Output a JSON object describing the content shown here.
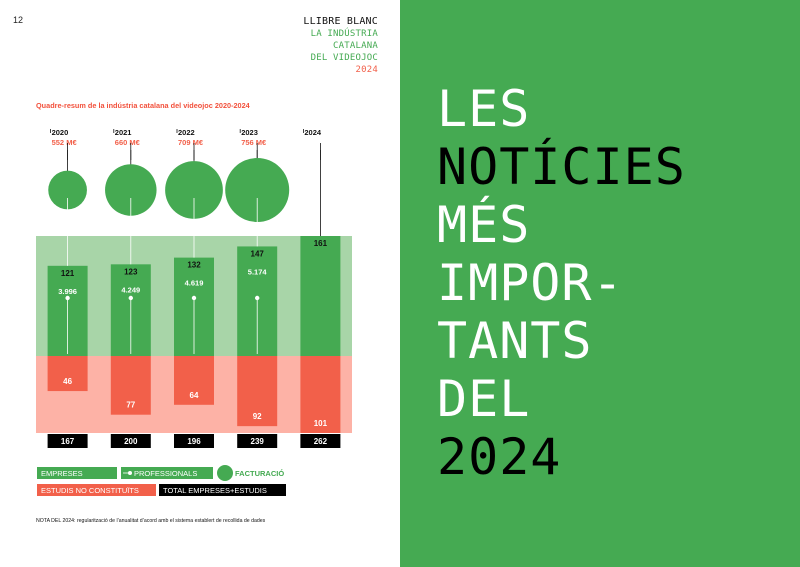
{
  "page": {
    "number": "12",
    "brand_lines": [
      "LLIBRE BLANC",
      "LA INDÚSTRIA",
      "CATALANA",
      "DEL VIDEOJOC",
      "2024"
    ]
  },
  "headline": {
    "lines": [
      "LES",
      "NOTÍCIES",
      "MÉS",
      "IMPOR-",
      "TANTS",
      "DEL",
      "2024"
    ]
  },
  "colors": {
    "green": "#45aa52",
    "light_green": "#a8d5a8",
    "red": "#f2604a",
    "light_red": "#fdb2a6",
    "black": "#000000"
  },
  "chart_data": {
    "type": "table",
    "title": "Quadre-resum de la indústria catalana del videojoc 2020-2024",
    "years": [
      "2020",
      "2021",
      "2022",
      "2023",
      "2024"
    ],
    "revenue_labels": [
      "552 M€",
      "660 M€",
      "709 M€",
      "756 M€",
      ""
    ],
    "revenue_meur": [
      552,
      660,
      709,
      756,
      null
    ],
    "companies": [
      121,
      123,
      132,
      147,
      161
    ],
    "professionals": [
      3996,
      4249,
      4619,
      5174,
      null
    ],
    "professionals_labels": [
      "3.996",
      "4.249",
      "4.619",
      "5.174",
      ""
    ],
    "studios_not_constituted": [
      46,
      77,
      64,
      92,
      101
    ],
    "total": [
      167,
      200,
      196,
      239,
      262
    ],
    "legend": {
      "companies": "EMPRESES",
      "professionals": "PROFESSIONALS",
      "revenue": "FACTURACIÓ",
      "studios": "ESTUDIS NO CONSTITUÏTS",
      "total": "TOTAL EMPRESES+ESTUDIS"
    }
  },
  "note": "NOTA DEL 2024: regularització de l’anualitat d’acord amb el sistema establert de recollida de dades"
}
